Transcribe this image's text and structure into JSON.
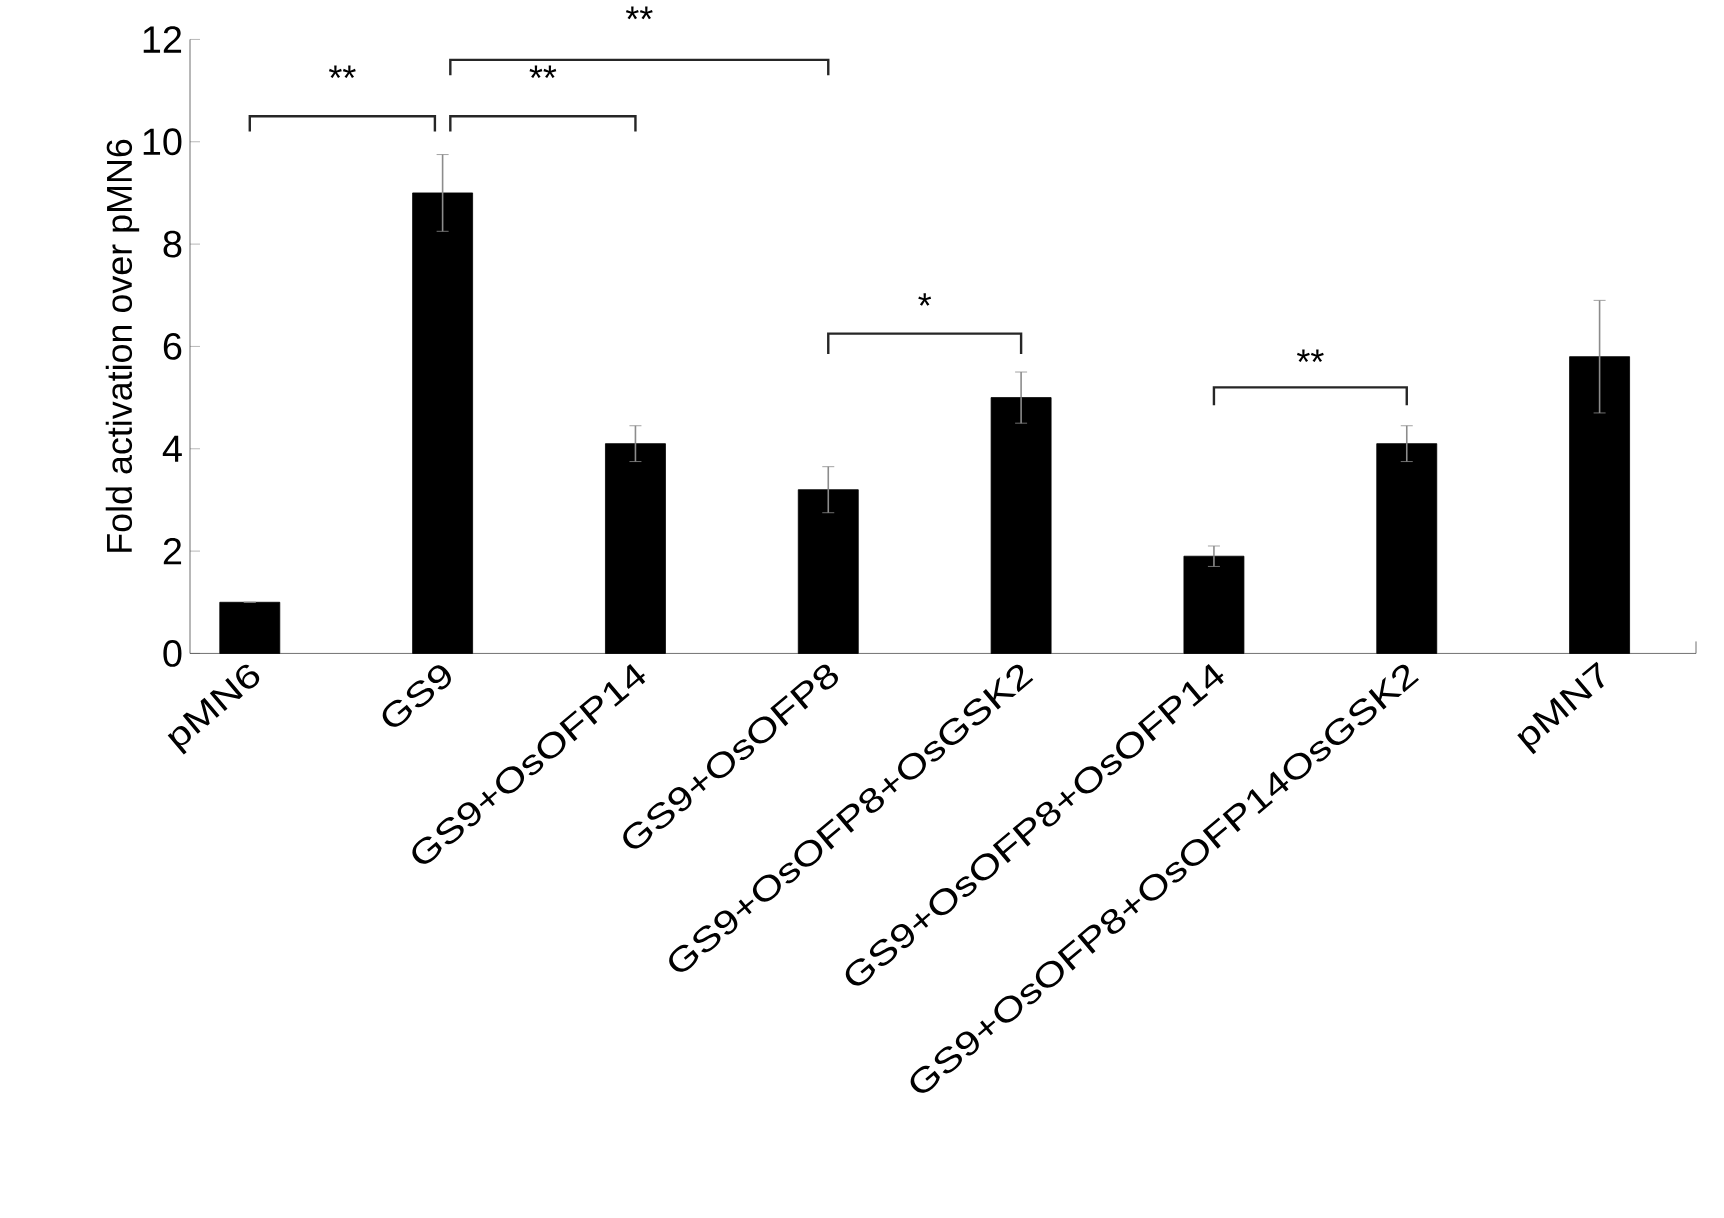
{
  "chart_data": {
    "type": "bar",
    "ylabel": "Fold activation over pMN6",
    "categories": [
      "pMN6",
      "GS9",
      "GS9+OsOFP14",
      "GS9+OsOFP8",
      "GS9+OsOFP8+OsGSK2",
      "GS9+OsOFP8+OsOFP14",
      "GS9+OsOFP8+OsOFP14OsGSK2",
      "pMN7"
    ],
    "values": [
      1.0,
      9.0,
      4.1,
      3.2,
      5.0,
      1.9,
      4.1,
      5.8
    ],
    "errors": [
      null,
      0.75,
      0.35,
      0.45,
      0.5,
      0.2,
      0.35,
      1.1
    ],
    "color": "#000000",
    "ylim": [
      0,
      12
    ],
    "yticks": [
      0,
      2,
      4,
      6,
      8,
      10,
      12
    ],
    "grid": false,
    "annotations": [
      "**",
      "**",
      "**",
      "*",
      "**"
    ]
  }
}
